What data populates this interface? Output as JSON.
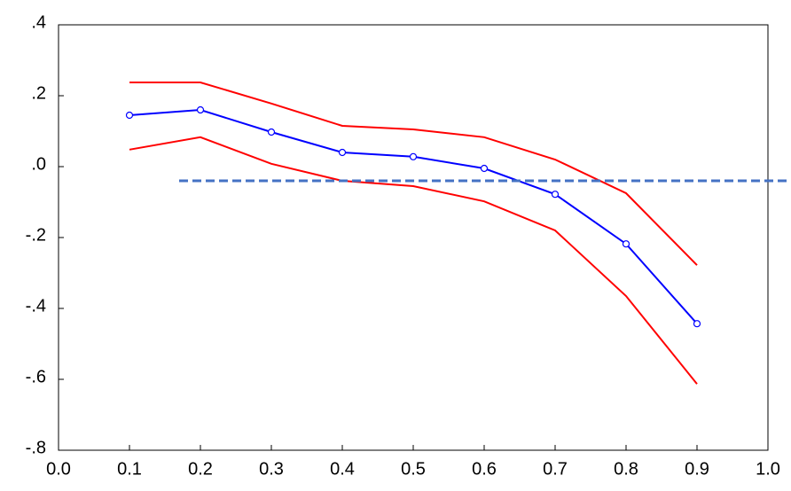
{
  "chart_data": {
    "type": "line",
    "x": [
      0.1,
      0.2,
      0.3,
      0.4,
      0.5,
      0.6,
      0.7,
      0.8,
      0.9
    ],
    "series": [
      {
        "color": "#0000ff",
        "markers": true,
        "values": [
          0.145,
          0.16,
          0.0975,
          0.04,
          0.028,
          -0.005,
          -0.078,
          -0.218,
          -0.443
        ]
      },
      {
        "color": "#ff0000",
        "markers": false,
        "values": [
          0.2375,
          0.2375,
          0.178,
          0.115,
          0.105,
          0.083,
          0.02,
          -0.075,
          -0.278
        ]
      },
      {
        "color": "#ff0000",
        "markers": false,
        "values": [
          0.048,
          0.083,
          0.008,
          -0.04,
          -0.055,
          -0.098,
          -0.18,
          -0.365,
          -0.613
        ]
      }
    ],
    "reference_line": {
      "x": [
        0.17,
        1.033
      ],
      "y": -0.04,
      "color": "#4472c4",
      "dashed": true
    },
    "xlim": [
      0.0,
      1.0
    ],
    "xticks": [
      {
        "value": 0.0,
        "label": "0.0"
      },
      0.1,
      0.2,
      0.3,
      0.4,
      0.5,
      0.6,
      0.7,
      0.8,
      0.9,
      {
        "value": 1.0,
        "label": "1.0"
      }
    ],
    "ylim": [
      -0.8,
      0.4
    ],
    "yticks": [
      {
        "value": -0.8,
        "label": "-.8"
      },
      {
        "value": -0.6,
        "label": "-.6"
      },
      {
        "value": -0.4,
        "label": "-.4"
      },
      {
        "value": -0.2,
        "label": "-.2"
      },
      {
        "value": 0.0,
        "label": ".0"
      },
      {
        "value": 0.2,
        "label": ".2"
      },
      {
        "value": 0.4,
        "label": ".4"
      }
    ],
    "grid": false
  }
}
